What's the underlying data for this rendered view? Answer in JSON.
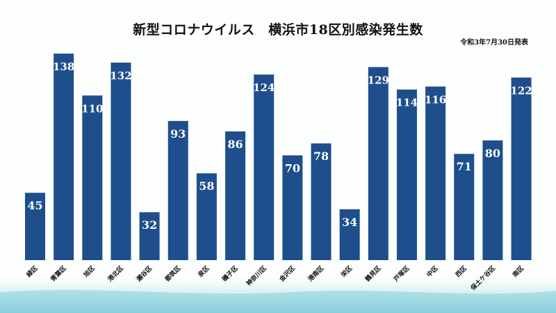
{
  "chart_data": {
    "type": "bar",
    "title": "新型コロナウイルス　横浜市18区別感染発生数",
    "subtitle": "令和3年7月30日発表",
    "categories": [
      "緑区",
      "青葉区",
      "旭区",
      "港北区",
      "瀬谷区",
      "都筑区",
      "泉区",
      "磯子区",
      "神奈川区",
      "金沢区",
      "港南区",
      "栄区",
      "鶴見区",
      "戸塚区",
      "中区",
      "西区",
      "保土ケ谷区",
      "南区"
    ],
    "values": [
      45,
      138,
      110,
      132,
      32,
      93,
      58,
      86,
      124,
      70,
      78,
      34,
      129,
      114,
      116,
      71,
      80,
      122
    ],
    "ylim": [
      0,
      145
    ],
    "xlabel": "",
    "ylabel": "",
    "grid": false,
    "bar_color": "#1f4e8c",
    "label_color": "#ffffff"
  }
}
